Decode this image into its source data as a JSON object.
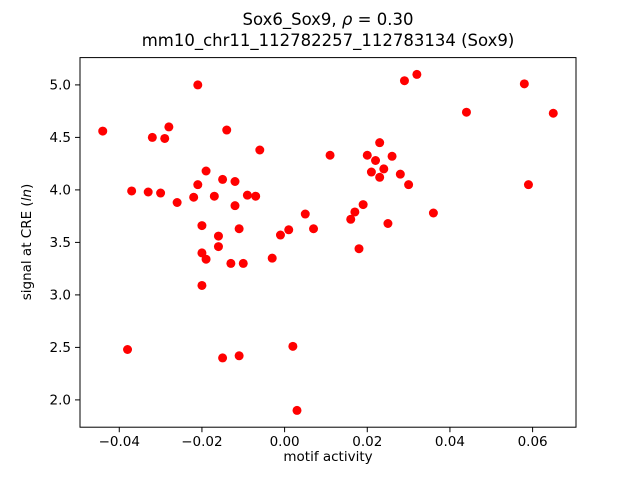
{
  "figure": {
    "title_line1": {
      "pre": "Sox6_Sox9, ",
      "rho": "ρ",
      "post": " = 0.30"
    },
    "title_line2": "mm10_chr11_112782257_112783134 (Sox9)",
    "xlabel": "motif activity",
    "ylabel": {
      "pre": "signal at CRE (",
      "italic": "ln",
      "post": ")"
    }
  },
  "chart_data": {
    "type": "scatter",
    "title": "Sox6_Sox9, ρ = 0.30",
    "subtitle": "mm10_chr11_112782257_112783134 (Sox9)",
    "xlabel": "motif activity",
    "ylabel": "signal at CRE (ln)",
    "legend": null,
    "grid": false,
    "marker_color": "#ff0000",
    "marker_radius_px": 4.5,
    "xlim": [
      -0.0495,
      0.0705
    ],
    "ylim": [
      1.74,
      5.26
    ],
    "xticks": {
      "values": [
        -0.04,
        -0.02,
        0.0,
        0.02,
        0.04,
        0.06
      ],
      "labels": [
        "−0.04",
        "−0.02",
        "0.00",
        "0.02",
        "0.04",
        "0.06"
      ]
    },
    "yticks": {
      "values": [
        2.0,
        2.5,
        3.0,
        3.5,
        4.0,
        4.5,
        5.0
      ],
      "labels": [
        "2.0",
        "2.5",
        "3.0",
        "3.5",
        "4.0",
        "4.5",
        "5.0"
      ]
    },
    "points": [
      [
        -0.044,
        4.56
      ],
      [
        -0.038,
        2.48
      ],
      [
        -0.037,
        3.99
      ],
      [
        -0.033,
        3.98
      ],
      [
        -0.032,
        4.5
      ],
      [
        -0.03,
        3.97
      ],
      [
        -0.029,
        4.49
      ],
      [
        -0.028,
        4.6
      ],
      [
        -0.026,
        3.88
      ],
      [
        -0.022,
        3.93
      ],
      [
        -0.021,
        5.0
      ],
      [
        -0.021,
        4.05
      ],
      [
        -0.02,
        3.66
      ],
      [
        -0.02,
        3.4
      ],
      [
        -0.02,
        3.09
      ],
      [
        -0.019,
        4.18
      ],
      [
        -0.019,
        3.34
      ],
      [
        -0.017,
        3.94
      ],
      [
        -0.016,
        3.56
      ],
      [
        -0.016,
        3.46
      ],
      [
        -0.015,
        2.4
      ],
      [
        -0.015,
        4.1
      ],
      [
        -0.014,
        4.57
      ],
      [
        -0.013,
        3.3
      ],
      [
        -0.012,
        4.08
      ],
      [
        -0.012,
        3.85
      ],
      [
        -0.011,
        3.63
      ],
      [
        -0.011,
        2.42
      ],
      [
        -0.01,
        3.3
      ],
      [
        -0.009,
        3.95
      ],
      [
        -0.007,
        3.94
      ],
      [
        -0.006,
        4.38
      ],
      [
        -0.003,
        3.35
      ],
      [
        -0.001,
        3.57
      ],
      [
        0.001,
        3.62
      ],
      [
        0.002,
        2.51
      ],
      [
        0.003,
        1.9
      ],
      [
        0.005,
        3.77
      ],
      [
        0.007,
        3.63
      ],
      [
        0.011,
        4.33
      ],
      [
        0.016,
        3.72
      ],
      [
        0.017,
        3.79
      ],
      [
        0.018,
        3.44
      ],
      [
        0.019,
        3.86
      ],
      [
        0.02,
        4.33
      ],
      [
        0.021,
        4.17
      ],
      [
        0.022,
        4.28
      ],
      [
        0.023,
        4.45
      ],
      [
        0.023,
        4.12
      ],
      [
        0.024,
        4.2
      ],
      [
        0.025,
        3.68
      ],
      [
        0.026,
        4.32
      ],
      [
        0.028,
        4.15
      ],
      [
        0.029,
        5.04
      ],
      [
        0.03,
        4.05
      ],
      [
        0.032,
        5.1
      ],
      [
        0.036,
        3.78
      ],
      [
        0.044,
        4.74
      ],
      [
        0.058,
        5.01
      ],
      [
        0.059,
        4.05
      ],
      [
        0.065,
        4.73
      ]
    ]
  }
}
